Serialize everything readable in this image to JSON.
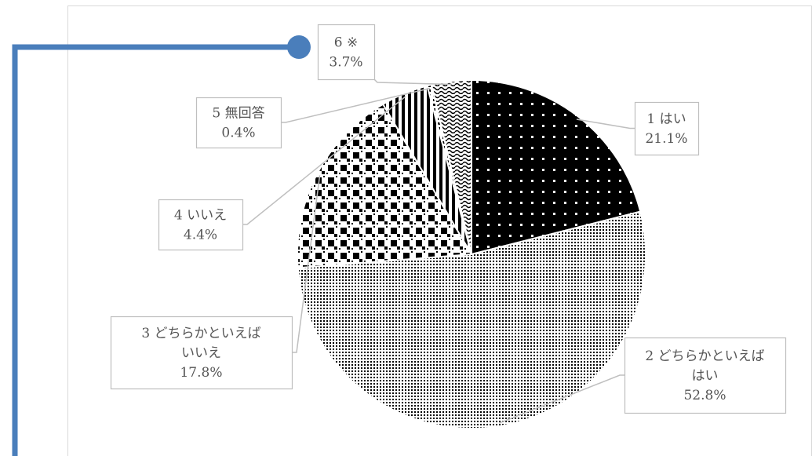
{
  "chart_data": {
    "type": "pie",
    "categories": [
      "1 はい",
      "2 どちらかといえばはい",
      "3 どちらかといえばいいえ",
      "4 いいえ",
      "5 無回答",
      "6 ※"
    ],
    "values": [
      21.1,
      52.8,
      17.8,
      4.4,
      0.4,
      3.7
    ],
    "value_labels": [
      "21.1%",
      "52.8%",
      "17.8%",
      "4.4%",
      "0.4%",
      "3.7%"
    ],
    "label_lines": [
      [
        "1 はい",
        "21.1%"
      ],
      [
        "2 どちらかといえば",
        "はい",
        "52.8%"
      ],
      [
        "3 どちらかといえば",
        "いいえ",
        "17.8%"
      ],
      [
        "4 いいえ",
        "4.4%"
      ],
      [
        "5 無回答",
        "0.4%"
      ],
      [
        "6 ※",
        "3.7%"
      ]
    ],
    "start_angle_deg": 0,
    "direction": "clockwise",
    "legend": "none",
    "title": "",
    "colors": {
      "frame": "#d9d9d9",
      "leader": "#bfbfbf",
      "label_border": "#bfbfbf",
      "label_text": "#555555",
      "accent": "#4a7ebb"
    }
  }
}
